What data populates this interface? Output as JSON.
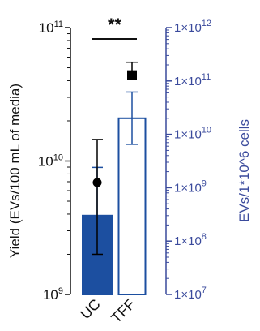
{
  "chart_data": {
    "type": "bar",
    "categories": [
      "UC",
      "TFF"
    ],
    "left_axis": {
      "label": "Yield (EVs/100 mL of media)",
      "scale": "log",
      "range": [
        1000000000,
        100000000000
      ],
      "tick_labels": [
        {
          "base": "10",
          "exp": "9",
          "value": 1000000000
        },
        {
          "base": "10",
          "exp": "10",
          "value": 10000000000
        },
        {
          "base": "10",
          "exp": "11",
          "value": 100000000000
        }
      ]
    },
    "right_axis": {
      "label": "EVs/1*10^6 cells",
      "scale": "log",
      "color": "#3a4a9c",
      "range": [
        10000000,
        1000000000000
      ],
      "tick_labels": [
        {
          "base": "1×10",
          "exp": "7",
          "value": 10000000
        },
        {
          "base": "1×10",
          "exp": "8",
          "value": 100000000
        },
        {
          "base": "1×10",
          "exp": "9",
          "value": 1000000000
        },
        {
          "base": "1×10",
          "exp": "10",
          "value": 10000000000
        },
        {
          "base": "1×10",
          "exp": "11",
          "value": 100000000000
        },
        {
          "base": "1×10",
          "exp": "12",
          "value": 1000000000000
        }
      ]
    },
    "bars": [
      {
        "category": "UC",
        "value": 300000000,
        "error_upper": 2400000000,
        "style": "filled",
        "color": "#1c4fa0"
      },
      {
        "category": "TFF",
        "value": 20000000000,
        "error_upper": 62000000000,
        "error_lower": 6500000000,
        "style": "outline",
        "color": "#1c4fa0"
      }
    ],
    "points": [
      {
        "category": "UC",
        "value": 6900000000,
        "error_upper": 14500000000,
        "error_lower": 2000000000,
        "marker": "circle",
        "color": "#000000"
      },
      {
        "category": "TFF",
        "value": 44000000000,
        "error_upper": 55000000000,
        "marker": "square",
        "color": "#000000"
      }
    ],
    "significance": {
      "label": "**",
      "between": [
        "UC",
        "TFF"
      ]
    }
  }
}
